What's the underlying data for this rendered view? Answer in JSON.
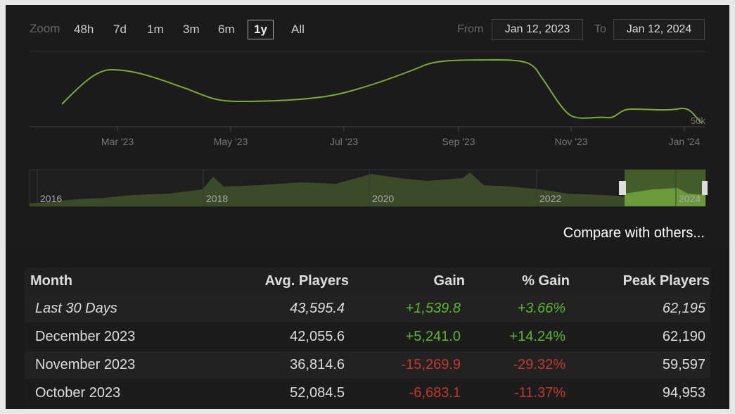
{
  "zoom": {
    "label": "Zoom",
    "options": [
      "48h",
      "7d",
      "1m",
      "3m",
      "6m",
      "1y",
      "All"
    ],
    "active": "1y"
  },
  "date_range": {
    "from_label": "From",
    "from": "Jan 12, 2023",
    "to_label": "To",
    "to": "Jan 12, 2024"
  },
  "chart": {
    "x_labels": [
      "Mar '23",
      "May '23",
      "Jul '23",
      "Sep '23",
      "Nov '23",
      "Jan '24"
    ],
    "y_label": "50k",
    "navigator_labels": [
      "2016",
      "2018",
      "2020",
      "2022",
      "2024"
    ]
  },
  "compare_link": "Compare with others...",
  "table": {
    "headers": [
      "Month",
      "Avg. Players",
      "Gain",
      "% Gain",
      "Peak Players"
    ],
    "rows": [
      [
        "Last 30 Days",
        "43,595.4",
        "+1,539.8",
        "+3.66%",
        "62,195"
      ],
      [
        "December 2023",
        "42,055.6",
        "+5,241.0",
        "+14.24%",
        "62,190"
      ],
      [
        "November 2023",
        "36,814.6",
        "-15,269.9",
        "-29.32%",
        "59,597"
      ],
      [
        "October 2023",
        "52,084.5",
        "-6,683.1",
        "-11.37%",
        "94,953"
      ]
    ]
  }
}
